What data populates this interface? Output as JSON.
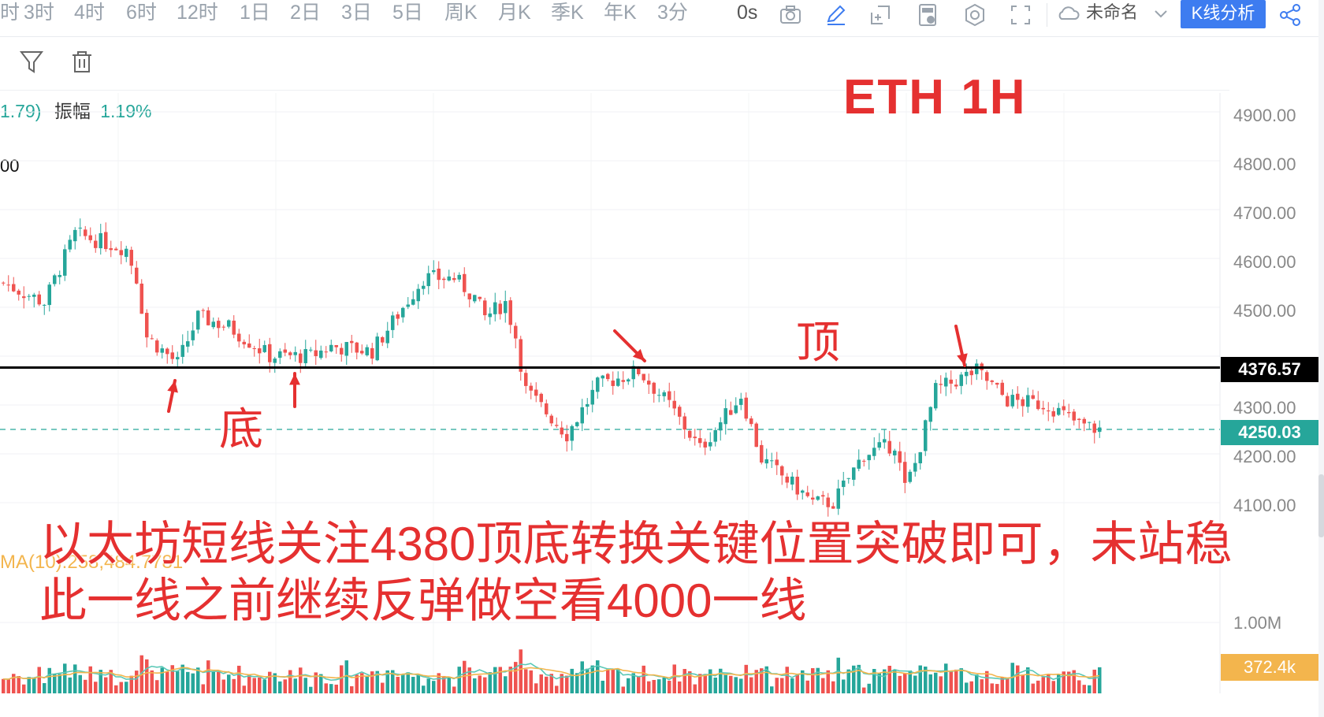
{
  "toolbar": {
    "timeframes": [
      "时",
      "3时",
      "4时",
      "6时",
      "12时",
      "1日",
      "2日",
      "3日",
      "5日",
      "周K",
      "月K",
      "季K",
      "年K",
      "3分"
    ],
    "countdown": "0s",
    "layout_name": "未命名",
    "kline_button": "K线分析"
  },
  "stats": {
    "left_value": "1.79)",
    "amplitude_label": "振幅",
    "amplitude_value": "1.19%",
    "truncated_price": "00"
  },
  "overlay": {
    "title": "ETH   1H",
    "top_label": "顶",
    "bottom_label": "底",
    "annotation_line1": "以太坊短线关注4380顶底转换关键位置突破即可，未站稳",
    "annotation_line2": "此一线之前继续反弹做空看4000一线"
  },
  "volume": {
    "ma_label": "MA(10):258,484.7781",
    "axis_label": "1.00M",
    "current_tag": "372.4k"
  },
  "colors": {
    "up": "#26a69a",
    "down": "#ef5350",
    "annotation": "#e53030",
    "ma_fast": "#5ac8b6",
    "ma_slow": "#f3b54d"
  },
  "chart_data": {
    "type": "candlestick",
    "symbol": "ETH",
    "interval": "1H",
    "ylim": [
      4050,
      4950
    ],
    "y_ticks": [
      "4900.00",
      "4800.00",
      "4700.00",
      "4600.00",
      "4500.00",
      "4300.00",
      "4200.00",
      "4100.00"
    ],
    "key_level": {
      "value": 4376.57,
      "label": "4376.57"
    },
    "last_price": {
      "value": 4250.03,
      "label": "4250.03"
    },
    "close_path": [
      [
        0,
        4550
      ],
      [
        8,
        4510
      ],
      [
        14,
        4650
      ],
      [
        24,
        4620
      ],
      [
        26,
        4560
      ],
      [
        28,
        4440
      ],
      [
        34,
        4385
      ],
      [
        38,
        4480
      ],
      [
        44,
        4460
      ],
      [
        52,
        4400
      ],
      [
        60,
        4400
      ],
      [
        64,
        4420
      ],
      [
        72,
        4410
      ],
      [
        78,
        4500
      ],
      [
        82,
        4560
      ],
      [
        88,
        4560
      ],
      [
        92,
        4520
      ],
      [
        94,
        4480
      ],
      [
        98,
        4510
      ],
      [
        100,
        4440
      ],
      [
        102,
        4330
      ],
      [
        110,
        4240
      ],
      [
        116,
        4340
      ],
      [
        124,
        4370
      ],
      [
        130,
        4300
      ],
      [
        136,
        4210
      ],
      [
        144,
        4320
      ],
      [
        148,
        4190
      ],
      [
        156,
        4120
      ],
      [
        158,
        4100
      ],
      [
        162,
        4100
      ],
      [
        168,
        4200
      ],
      [
        174,
        4220
      ],
      [
        176,
        4130
      ],
      [
        178,
        4180
      ],
      [
        182,
        4330
      ],
      [
        186,
        4350
      ],
      [
        190,
        4370
      ],
      [
        196,
        4310
      ],
      [
        204,
        4300
      ],
      [
        210,
        4260
      ],
      [
        214,
        4250
      ]
    ]
  }
}
